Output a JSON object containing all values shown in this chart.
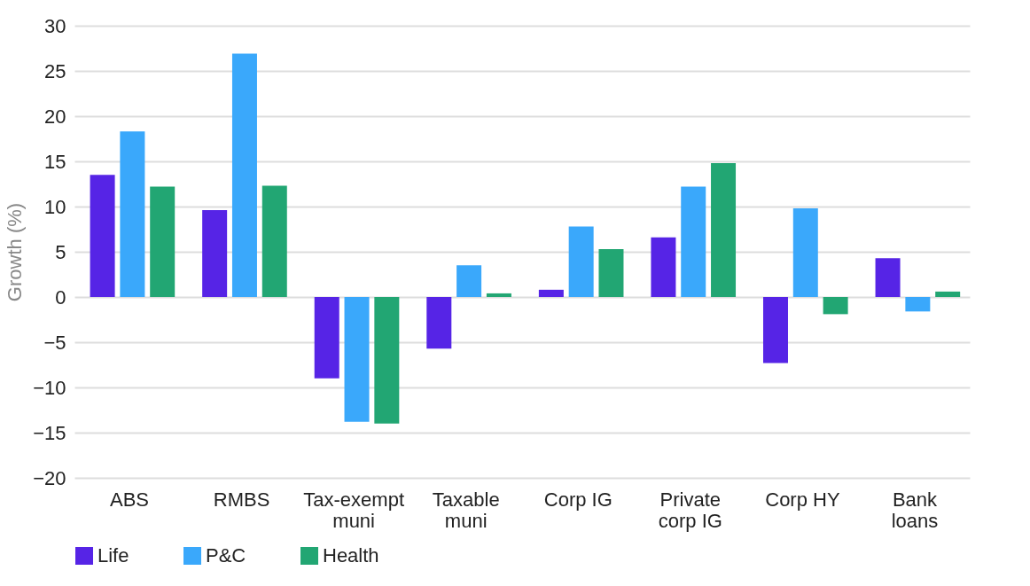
{
  "chart_data": {
    "type": "bar",
    "ylabel": "Growth (%)",
    "categories": [
      "ABS",
      "RMBS",
      "Tax-exempt muni",
      "Taxable muni",
      "Corp IG",
      "Private corp IG",
      "Corp HY",
      "Bank loans"
    ],
    "series": [
      {
        "name": "Life",
        "color": "#5624e6",
        "values": [
          13.5,
          9.6,
          -9.0,
          -5.7,
          0.8,
          6.6,
          -7.3,
          4.3
        ]
      },
      {
        "name": "P&C",
        "color": "#3aa8fb",
        "values": [
          18.3,
          26.9,
          -13.8,
          3.5,
          7.8,
          12.2,
          9.8,
          -1.6
        ]
      },
      {
        "name": "Health",
        "color": "#22a673",
        "values": [
          12.2,
          12.3,
          -14.0,
          0.4,
          5.3,
          14.8,
          -1.9,
          0.6
        ]
      }
    ],
    "ylim": [
      -20,
      30
    ],
    "yticks": [
      -20,
      -15,
      -10,
      -5,
      0,
      5,
      10,
      15,
      20,
      25,
      30
    ],
    "grid": "y",
    "legend": "bottom"
  }
}
